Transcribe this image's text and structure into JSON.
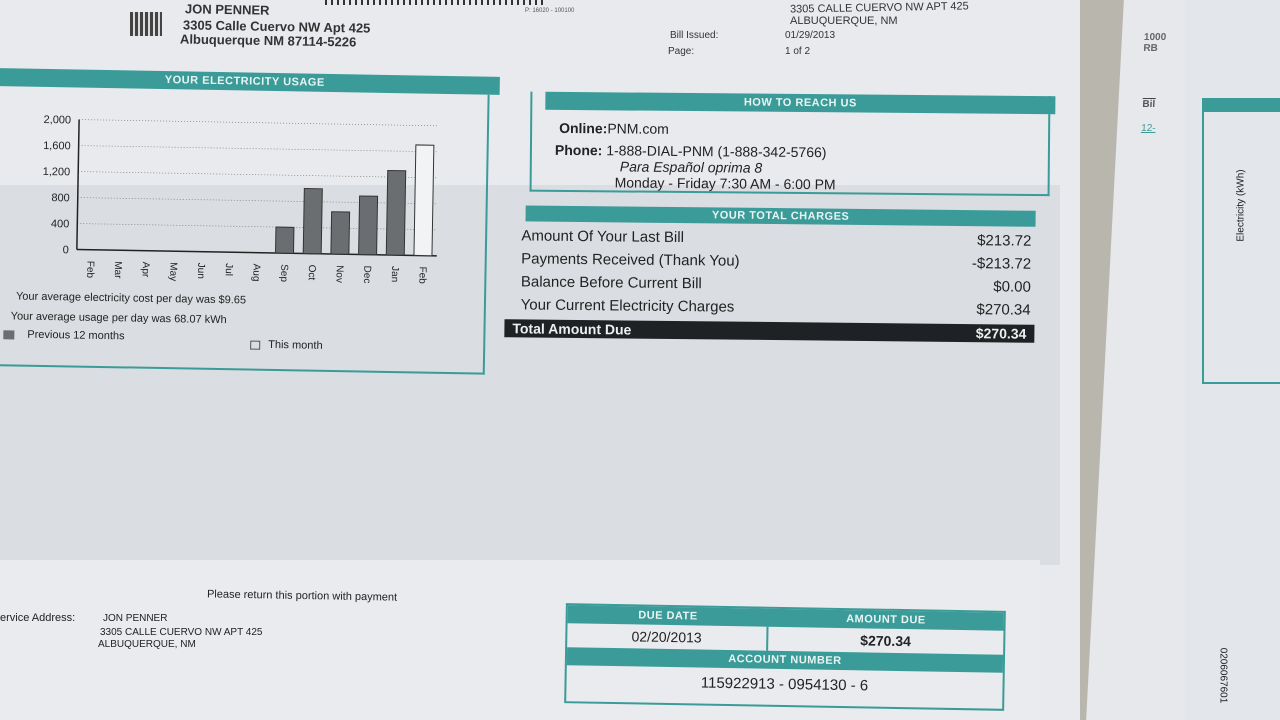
{
  "header": {
    "name": "JON PENNER",
    "address1": "3305 Calle Cuervo NW Apt 425",
    "address2": "Albuquerque  NM   87114-5226",
    "code": "P: 16020 - 100100",
    "service_address1": "3305 CALLE CUERVO  NW APT 425",
    "service_address2": "ALBUQUERQUE, NM",
    "bill_issued_label": "Bill Issued:",
    "bill_issued": "01/29/2013",
    "page_label": "Page:",
    "page": "1 of 2"
  },
  "usage": {
    "title": "YOUR ELECTRICITY USAGE",
    "avg_cost": "Your average electricity cost per day was  $9.65",
    "avg_usage": "Your average usage per day was  68.07 kWh",
    "legend_prev": "Previous 12 months",
    "legend_this": "This month"
  },
  "chart_data": {
    "type": "bar",
    "title": "YOUR ELECTRICITY USAGE",
    "categories": [
      "Feb",
      "Mar",
      "Apr",
      "May",
      "Jun",
      "Jul",
      "Aug",
      "Sep",
      "Oct",
      "Nov",
      "Dec",
      "Jan",
      "Feb"
    ],
    "series": [
      {
        "name": "Previous 12 months",
        "values": [
          0,
          0,
          0,
          0,
          0,
          0,
          0,
          400,
          1000,
          650,
          900,
          1300,
          null
        ]
      },
      {
        "name": "This month",
        "values": [
          null,
          null,
          null,
          null,
          null,
          null,
          null,
          null,
          null,
          null,
          null,
          null,
          1700
        ]
      }
    ],
    "yticks": [
      "2,000",
      "1,600",
      "1,200",
      "800",
      "400",
      "0"
    ],
    "ylim": [
      0,
      2000
    ],
    "grid": true,
    "legend": "bottom",
    "colors": {
      "previous": "#6b6e70",
      "this": "#f2f3f4"
    }
  },
  "reach": {
    "title": "HOW TO REACH US",
    "online_label": "Online:",
    "online": "PNM.com",
    "phone_label": "Phone:",
    "phone": "1-888-DIAL-PNM (1-888-342-5766)",
    "spanish": "Para Español oprima 8",
    "hours": "Monday - Friday  7:30 AM - 6:00 PM"
  },
  "charges": {
    "title": "YOUR TOTAL CHARGES",
    "rows": [
      {
        "label": "Amount Of Your Last Bill",
        "value": "$213.72"
      },
      {
        "label": "Payments Received (Thank You)",
        "value": "-$213.72"
      },
      {
        "label": "Balance Before Current Bill",
        "value": "$0.00"
      },
      {
        "label": "Your Current Electricity Charges",
        "value": "$270.34"
      }
    ],
    "total_label": "Total Amount Due",
    "total_value": "$270.34"
  },
  "stub": {
    "return_note": "Please return this portion with payment",
    "service_label": "ervice Address:",
    "name": "JON PENNER",
    "address1": "3305 CALLE CUERVO  NW APT 425",
    "address2": "ALBUQUERQUE, NM",
    "due_date_label": "DUE DATE",
    "due_date": "02/20/2013",
    "amount_due_label": "AMOUNT DUE",
    "amount_due": "$270.34",
    "account_label": "ACCOUNT NUMBER",
    "account": "115922913 - 0954130 - 6"
  },
  "side": {
    "code1": "1000",
    "code2": "RB",
    "bill": "Bil",
    "date": "12-",
    "axis_label": "Electricity (kWh)",
    "barcode_num": "0206067601"
  },
  "colors": {
    "teal": "#3b9b98",
    "paper": "#e8eaee"
  }
}
